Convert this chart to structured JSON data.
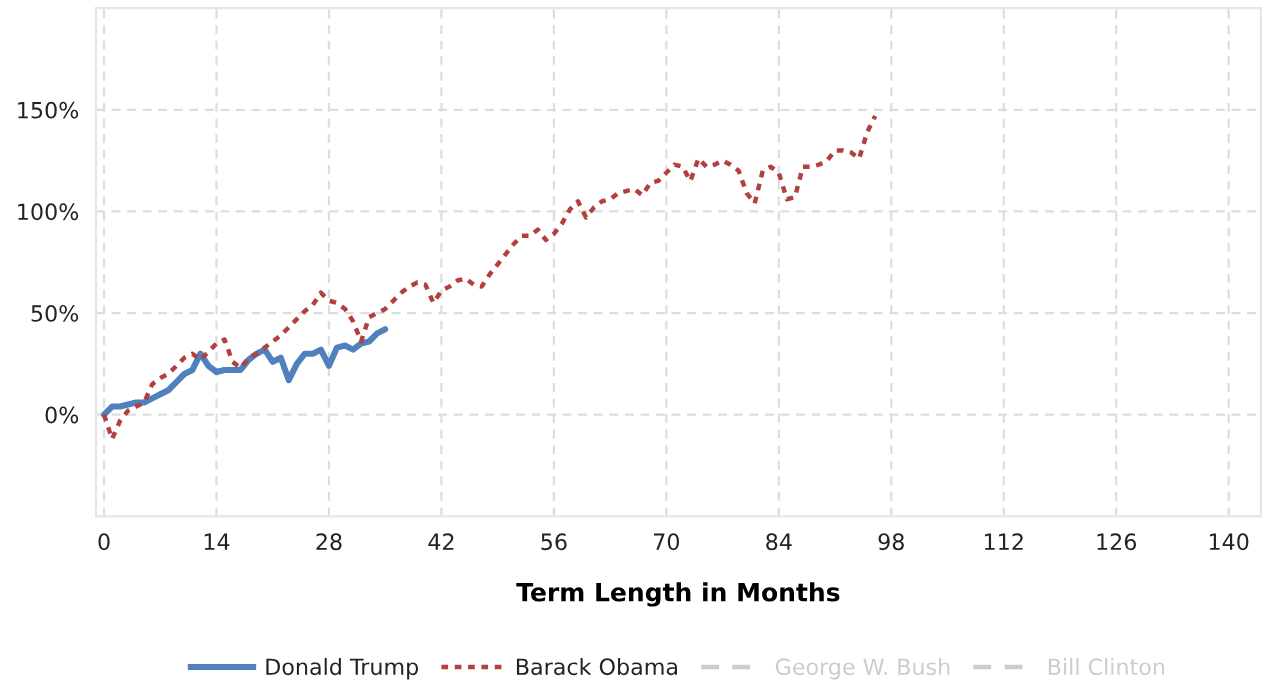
{
  "chart_data": {
    "type": "line",
    "xlabel": "Term Length in Months",
    "xlim": [
      -1,
      144
    ],
    "xticks": [
      0,
      14,
      28,
      42,
      56,
      70,
      84,
      98,
      112,
      126,
      140
    ],
    "ylim": [
      -50,
      200
    ],
    "yticks": [
      {
        "value": 0,
        "label": "0%"
      },
      {
        "value": 50,
        "label": "50%"
      },
      {
        "value": 100,
        "label": "100%"
      },
      {
        "value": 150,
        "label": "150%"
      }
    ],
    "grid": true,
    "legend": "bottom",
    "marker": "none",
    "series": [
      {
        "name": "Donald Trump",
        "color": "#4f81bd",
        "line_style": "solid",
        "x": [
          0,
          1,
          2,
          3,
          4,
          5,
          6,
          7,
          8,
          9,
          10,
          11,
          12,
          13,
          14,
          15,
          16,
          17,
          18,
          19,
          20,
          21,
          22,
          23,
          24,
          25,
          26,
          27,
          28,
          29,
          30,
          31,
          32,
          33,
          34,
          35
        ],
        "values": [
          0,
          4,
          4,
          5,
          6,
          6,
          8,
          10,
          12,
          16,
          20,
          22,
          30,
          24,
          21,
          22,
          22,
          22,
          27,
          30,
          32,
          26,
          28,
          17,
          25,
          30,
          30,
          32,
          24,
          33,
          34,
          32,
          35,
          36,
          40,
          42
        ]
      },
      {
        "name": "Barack Obama",
        "color": "#b0413e",
        "line_style": "dotted",
        "x": [
          0,
          1,
          2,
          3,
          4,
          5,
          6,
          7,
          8,
          9,
          10,
          11,
          12,
          13,
          14,
          15,
          16,
          17,
          18,
          19,
          20,
          21,
          22,
          23,
          24,
          25,
          26,
          27,
          28,
          29,
          30,
          31,
          32,
          33,
          34,
          35,
          36,
          37,
          38,
          39,
          40,
          41,
          42,
          43,
          44,
          45,
          46,
          47,
          48,
          49,
          50,
          51,
          52,
          53,
          54,
          55,
          56,
          57,
          58,
          59,
          60,
          61,
          62,
          63,
          64,
          65,
          66,
          67,
          68,
          69,
          70,
          71,
          72,
          73,
          74,
          75,
          76,
          77,
          78,
          79,
          80,
          81,
          82,
          83,
          84,
          85,
          86,
          87,
          88,
          89,
          90,
          91,
          92,
          93,
          94,
          95,
          96
        ],
        "values": [
          0,
          -12,
          -3,
          2,
          4,
          6,
          15,
          18,
          20,
          24,
          28,
          30,
          27,
          31,
          35,
          37,
          26,
          23,
          28,
          30,
          33,
          36,
          39,
          43,
          47,
          51,
          54,
          60,
          56,
          55,
          52,
          46,
          36,
          48,
          50,
          52,
          56,
          60,
          63,
          65,
          64,
          55,
          61,
          63,
          66,
          67,
          64,
          63,
          69,
          74,
          79,
          84,
          88,
          88,
          91,
          86,
          89,
          94,
          101,
          105,
          97,
          102,
          105,
          106,
          109,
          110,
          111,
          108,
          114,
          115,
          119,
          123,
          122,
          115,
          126,
          122,
          123,
          125,
          123,
          120,
          109,
          104,
          120,
          122,
          119,
          106,
          107,
          122,
          122,
          123,
          125,
          130,
          130,
          129,
          126,
          139,
          147
        ]
      },
      {
        "name": "George W. Bush",
        "color": "#cccccc",
        "line_style": "dashed"
      },
      {
        "name": "Bill Clinton",
        "color": "#cccccc",
        "line_style": "dashed"
      }
    ]
  }
}
